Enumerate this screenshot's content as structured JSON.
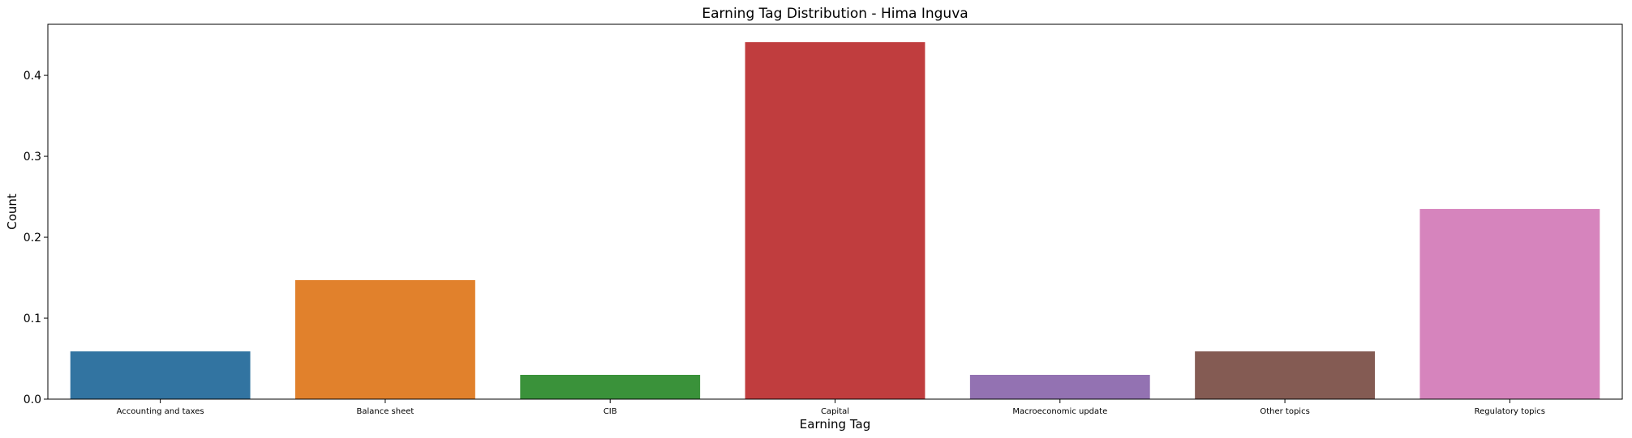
{
  "chart_data": {
    "type": "bar",
    "title": "Earning Tag Distribution - Hima Inguva",
    "xlabel": "Earning Tag",
    "ylabel": "Count",
    "categories": [
      "Accounting and taxes",
      "Balance sheet",
      "CIB",
      "Capital",
      "Macroeconomic update",
      "Other topics",
      "Regulatory topics"
    ],
    "values": [
      0.059,
      0.147,
      0.03,
      0.441,
      0.03,
      0.059,
      0.235
    ],
    "colors": [
      "#3274a1",
      "#e1812c",
      "#3a923a",
      "#c03d3e",
      "#9372b2",
      "#845b53",
      "#d684bd"
    ],
    "ylim": [
      0,
      0.4631
    ],
    "yticks": [
      0.0,
      0.1,
      0.2,
      0.3,
      0.4
    ],
    "ytick_labels": [
      "0.0",
      "0.1",
      "0.2",
      "0.3",
      "0.4"
    ],
    "grid": false,
    "legend": false
  }
}
